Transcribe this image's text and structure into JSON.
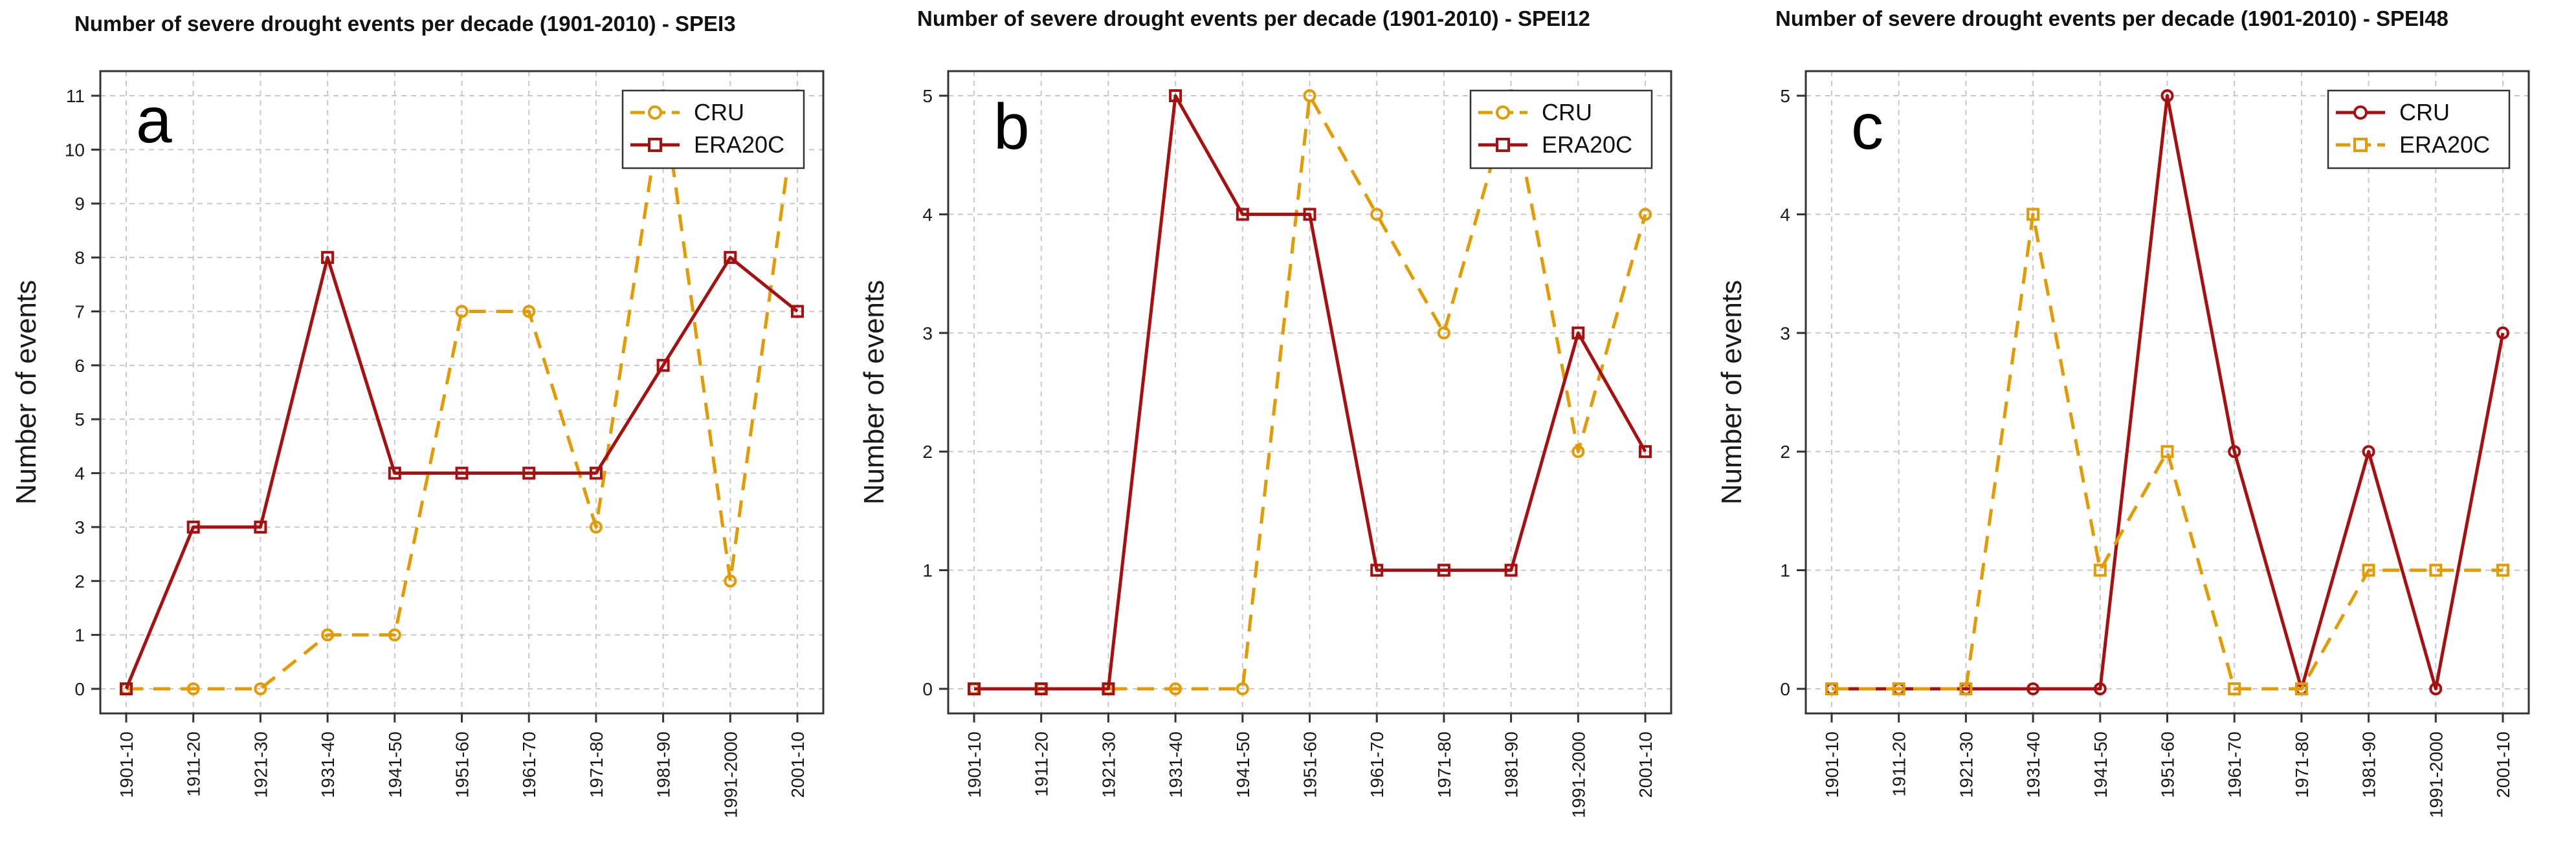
{
  "colors": {
    "orange": "#e59a00",
    "darkred": "#a80f0f"
  },
  "chart_data": [
    {
      "type": "line",
      "panel_label": "a",
      "title": "Number of severe drought events per decade (1901-2010) - SPEI3",
      "xlabel": "",
      "ylabel": "Number of events",
      "ylim": [
        0,
        11
      ],
      "yticks": [
        "0",
        "1",
        "2",
        "3",
        "4",
        "5",
        "6",
        "7",
        "8",
        "9",
        "10",
        "11"
      ],
      "categories": [
        "1901-10",
        "1911-20",
        "1921-30",
        "1931-40",
        "1941-50",
        "1951-60",
        "1961-70",
        "1971-80",
        "1981-90",
        "1991-2000",
        "2001-10"
      ],
      "legend_position": "top-right",
      "grid": true,
      "series": [
        {
          "name": "CRU",
          "color": "orange",
          "dashed": true,
          "marker": "circle",
          "values": [
            0,
            0,
            0,
            1,
            1,
            7,
            7,
            3,
            11,
            2,
            11
          ]
        },
        {
          "name": "ERA20C",
          "color": "darkred",
          "dashed": false,
          "marker": "square",
          "values": [
            0,
            3,
            3,
            8,
            4,
            4,
            4,
            4,
            6,
            8,
            7
          ]
        }
      ]
    },
    {
      "type": "line",
      "panel_label": "b",
      "title": "Number of severe drought events per decade (1901-2010) - SPEI12",
      "xlabel": "",
      "ylabel": "Number of events",
      "ylim": [
        0,
        5
      ],
      "yticks": [
        "0",
        "1",
        "2",
        "3",
        "4",
        "5"
      ],
      "categories": [
        "1901-10",
        "1911-20",
        "1921-30",
        "1931-40",
        "1941-50",
        "1951-60",
        "1961-70",
        "1971-80",
        "1981-90",
        "1991-2000",
        "2001-10"
      ],
      "legend_position": "top-right",
      "grid": true,
      "series": [
        {
          "name": "CRU",
          "color": "orange",
          "dashed": true,
          "marker": "circle",
          "values": [
            0,
            0,
            0,
            0,
            0,
            5,
            4,
            3,
            5,
            2,
            4
          ]
        },
        {
          "name": "ERA20C",
          "color": "darkred",
          "dashed": false,
          "marker": "square",
          "values": [
            0,
            0,
            0,
            5,
            4,
            4,
            1,
            1,
            1,
            3,
            2
          ]
        }
      ]
    },
    {
      "type": "line",
      "panel_label": "c",
      "title": "Number of severe drought events per decade (1901-2010) - SPEI48",
      "xlabel": "",
      "ylabel": "Number of events",
      "ylim": [
        0,
        5
      ],
      "yticks": [
        "0",
        "1",
        "2",
        "3",
        "4",
        "5"
      ],
      "categories": [
        "1901-10",
        "1911-20",
        "1921-30",
        "1931-40",
        "1941-50",
        "1951-60",
        "1961-70",
        "1971-80",
        "1981-90",
        "1991-2000",
        "2001-10"
      ],
      "legend_position": "top-right",
      "grid": true,
      "series": [
        {
          "name": "CRU",
          "color": "darkred",
          "dashed": false,
          "marker": "circle",
          "values": [
            0,
            0,
            0,
            0,
            0,
            5,
            2,
            0,
            2,
            0,
            3
          ]
        },
        {
          "name": "ERA20C",
          "color": "orange",
          "dashed": true,
          "marker": "square",
          "values": [
            0,
            0,
            0,
            4,
            1,
            2,
            0,
            0,
            1,
            1,
            1
          ]
        }
      ]
    }
  ]
}
